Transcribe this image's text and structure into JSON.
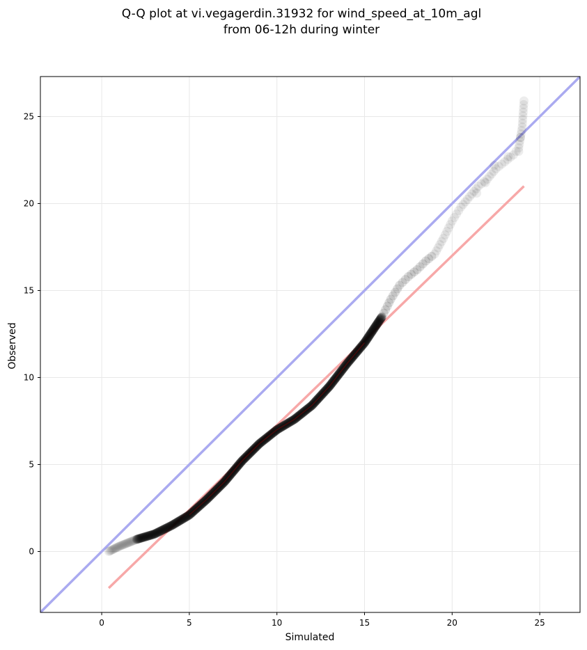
{
  "chart_data": {
    "type": "scatter",
    "title": [
      "Q-Q plot at vi.vegagerdin.31932 for wind_speed_at_10m_agl",
      "from 06-12h during winter"
    ],
    "xlabel": "Simulated",
    "ylabel": "Observed",
    "xlim": [
      -3.5,
      27.3
    ],
    "ylim": [
      -3.5,
      27.3
    ],
    "xticks": [
      0,
      5,
      10,
      15,
      20,
      25
    ],
    "yticks": [
      0,
      5,
      10,
      15,
      20,
      25
    ],
    "grid": true,
    "legend": "none",
    "colors": {
      "points": "#000000",
      "identity_line": "#aaaaf0",
      "fit_line": "#f7a8a8",
      "fit_line_dense": "#b00000",
      "grid": "#e8e8e8"
    },
    "reference_lines": [
      {
        "role": "identity",
        "points": [
          [
            -3.5,
            -3.5
          ],
          [
            27.3,
            27.3
          ]
        ]
      },
      {
        "role": "fit",
        "points": [
          [
            0.4,
            -2.1
          ],
          [
            24.1,
            21.0
          ]
        ]
      }
    ],
    "quantile_curve": [
      [
        0.4,
        0.0
      ],
      [
        1.0,
        0.3
      ],
      [
        2.0,
        0.7
      ],
      [
        3.0,
        1.0
      ],
      [
        4.0,
        1.5
      ],
      [
        5.0,
        2.1
      ],
      [
        6.0,
        3.0
      ],
      [
        7.0,
        4.0
      ],
      [
        8.0,
        5.2
      ],
      [
        9.0,
        6.2
      ],
      [
        10.0,
        7.0
      ],
      [
        11.0,
        7.6
      ],
      [
        12.0,
        8.4
      ],
      [
        13.0,
        9.5
      ],
      [
        14.0,
        10.8
      ],
      [
        15.0,
        12.0
      ],
      [
        16.0,
        13.5
      ],
      [
        16.5,
        14.5
      ],
      [
        17.0,
        15.3
      ],
      [
        17.5,
        15.8
      ],
      [
        18.0,
        16.2
      ],
      [
        18.5,
        16.7
      ],
      [
        19.0,
        17.1
      ],
      [
        19.5,
        18.0
      ],
      [
        20.0,
        19.0
      ],
      [
        20.5,
        19.8
      ],
      [
        21.0,
        20.4
      ],
      [
        21.5,
        21.0
      ],
      [
        22.0,
        21.4
      ],
      [
        22.5,
        22.0
      ],
      [
        23.0,
        22.4
      ],
      [
        23.5,
        22.8
      ],
      [
        23.8,
        23.2
      ],
      [
        24.0,
        24.4
      ],
      [
        24.1,
        25.9
      ]
    ],
    "outliers": [
      [
        21.4,
        20.6
      ],
      [
        21.9,
        21.2
      ],
      [
        22.4,
        22.2
      ],
      [
        23.2,
        22.7
      ],
      [
        23.8,
        23.0
      ],
      [
        23.9,
        23.8
      ]
    ]
  }
}
